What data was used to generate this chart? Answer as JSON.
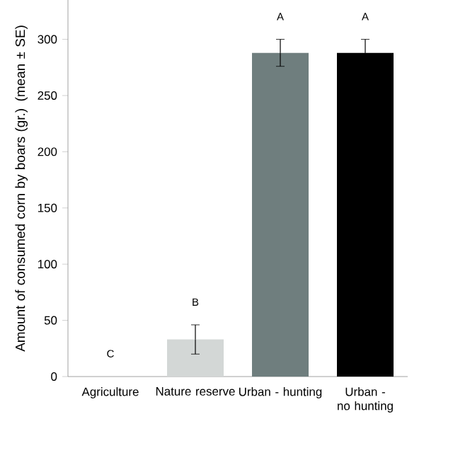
{
  "chart_data": {
    "type": "bar",
    "ylabel": "Amount of consumed corn by boars (gr.) (mean ± SE)",
    "categories": [
      "Agriculture",
      "Nature reserve",
      "Urban - hunting",
      "Urban - no hunting"
    ],
    "values": [
      0,
      33,
      288,
      288
    ],
    "errors": [
      null,
      13,
      12,
      12
    ],
    "colors": [
      "#d3d7d6",
      "#d3d7d6",
      "#6f7e7e",
      "#000000"
    ],
    "ylim": [
      0,
      335
    ],
    "yticks": [
      0,
      50,
      100,
      150,
      200,
      250,
      300
    ],
    "grid": false,
    "annotations": [
      "C",
      "B",
      "A",
      "A"
    ]
  }
}
